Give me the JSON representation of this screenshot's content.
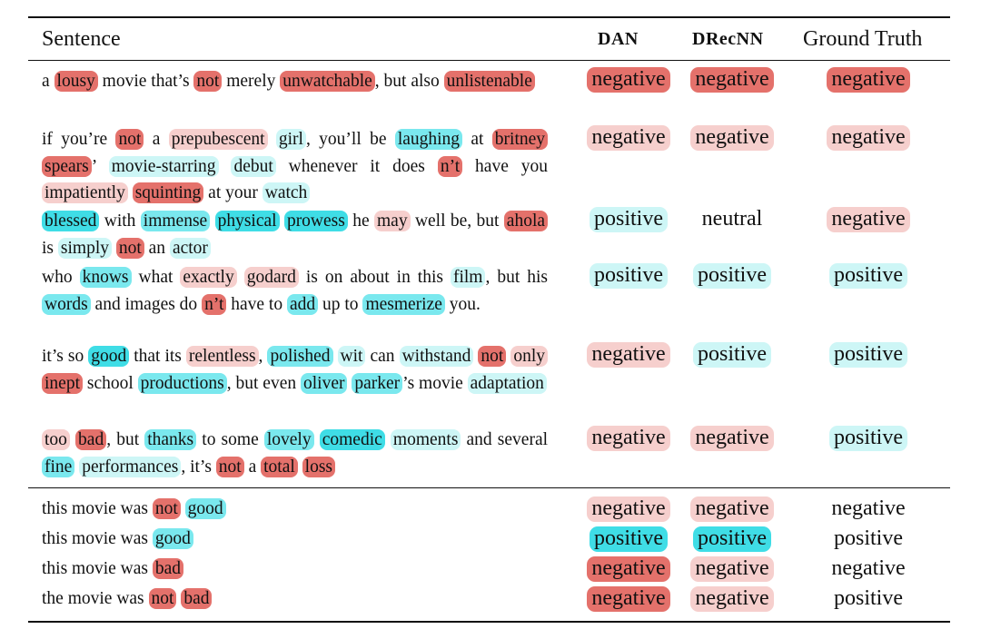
{
  "headers": {
    "sentence": "Sentence",
    "dan": "DAN",
    "drecnn": "DRecNN",
    "truth": "Ground Truth"
  },
  "rows": [
    {
      "tokens": [
        {
          "t": "a ",
          "c": "0"
        },
        {
          "t": "lousy",
          "c": "n3"
        },
        {
          "t": " movie that’s ",
          "c": "0"
        },
        {
          "t": "not",
          "c": "n3"
        },
        {
          "t": " merely ",
          "c": "0"
        },
        {
          "t": "unwatchable",
          "c": "n3"
        },
        {
          "t": ", but also ",
          "c": "0"
        },
        {
          "t": "unlistenable",
          "c": "n3"
        }
      ],
      "dan": {
        "text": "negative",
        "c": "n3"
      },
      "drecnn": {
        "text": "negative",
        "c": "n3"
      },
      "truth": {
        "text": "negative",
        "c": "n3"
      }
    },
    {
      "tokens": [
        {
          "t": "if you’re ",
          "c": "0"
        },
        {
          "t": "not",
          "c": "n3"
        },
        {
          "t": " a ",
          "c": "0"
        },
        {
          "t": "prepubescent",
          "c": "n1"
        },
        {
          "t": " ",
          "c": "0"
        },
        {
          "t": "girl",
          "c": "p1"
        },
        {
          "t": ", you’ll be ",
          "c": "0"
        },
        {
          "t": "laughing",
          "c": "p2"
        },
        {
          "t": " at ",
          "c": "0"
        },
        {
          "t": "britney",
          "c": "n3"
        },
        {
          "t": " ",
          "c": "0"
        },
        {
          "t": "spears",
          "c": "n3"
        },
        {
          "t": "’ ",
          "c": "0"
        },
        {
          "t": "movie-starring",
          "c": "p1"
        },
        {
          "t": " ",
          "c": "0"
        },
        {
          "t": "debut",
          "c": "p1"
        },
        {
          "t": " whenever it does ",
          "c": "0"
        },
        {
          "t": "n’t",
          "c": "n3"
        },
        {
          "t": " have you ",
          "c": "0"
        },
        {
          "t": "impatiently",
          "c": "n1"
        },
        {
          "t": " ",
          "c": "0"
        },
        {
          "t": "squinting",
          "c": "n3"
        },
        {
          "t": " at your ",
          "c": "0"
        },
        {
          "t": "watch",
          "c": "p1"
        }
      ],
      "dan": {
        "text": "negative",
        "c": "n1"
      },
      "drecnn": {
        "text": "negative",
        "c": "n1"
      },
      "truth": {
        "text": "negative",
        "c": "n1"
      }
    },
    {
      "tokens": [
        {
          "t": "blessed",
          "c": "p3"
        },
        {
          "t": " with ",
          "c": "0"
        },
        {
          "t": "immense",
          "c": "p2"
        },
        {
          "t": " ",
          "c": "0"
        },
        {
          "t": "physical",
          "c": "p3"
        },
        {
          "t": " ",
          "c": "0"
        },
        {
          "t": "prowess",
          "c": "p3"
        },
        {
          "t": " he ",
          "c": "0"
        },
        {
          "t": "may",
          "c": "n1"
        },
        {
          "t": " well be, but ",
          "c": "0"
        },
        {
          "t": "ahola",
          "c": "n3"
        },
        {
          "t": " is ",
          "c": "0"
        },
        {
          "t": "simply",
          "c": "p1"
        },
        {
          "t": " ",
          "c": "0"
        },
        {
          "t": "not",
          "c": "n3"
        },
        {
          "t": " an ",
          "c": "0"
        },
        {
          "t": "actor",
          "c": "p1"
        }
      ],
      "dan": {
        "text": "positive",
        "c": "p1"
      },
      "drecnn": {
        "text": "neutral",
        "c": "0"
      },
      "truth": {
        "text": "negative",
        "c": "n1"
      }
    },
    {
      "tokens": [
        {
          "t": "who ",
          "c": "0"
        },
        {
          "t": "knows",
          "c": "p2"
        },
        {
          "t": " what ",
          "c": "0"
        },
        {
          "t": "exactly",
          "c": "n1"
        },
        {
          "t": " ",
          "c": "0"
        },
        {
          "t": "godard",
          "c": "n1"
        },
        {
          "t": " is on about in this ",
          "c": "0"
        },
        {
          "t": "film",
          "c": "p1"
        },
        {
          "t": ", but his ",
          "c": "0"
        },
        {
          "t": "words",
          "c": "p2"
        },
        {
          "t": " and images do ",
          "c": "0"
        },
        {
          "t": "n’t",
          "c": "n3"
        },
        {
          "t": " have to ",
          "c": "0"
        },
        {
          "t": "add",
          "c": "p2"
        },
        {
          "t": " up to ",
          "c": "0"
        },
        {
          "t": "mesmerize",
          "c": "p2"
        },
        {
          "t": " you.",
          "c": "0"
        }
      ],
      "dan": {
        "text": "positive",
        "c": "p1"
      },
      "drecnn": {
        "text": "positive",
        "c": "p1"
      },
      "truth": {
        "text": "positive",
        "c": "p1"
      }
    },
    {
      "tokens": [
        {
          "t": "it’s so ",
          "c": "0"
        },
        {
          "t": "good",
          "c": "p3"
        },
        {
          "t": " that its ",
          "c": "0"
        },
        {
          "t": "relentless",
          "c": "n1"
        },
        {
          "t": ", ",
          "c": "0"
        },
        {
          "t": "polished",
          "c": "p2"
        },
        {
          "t": " ",
          "c": "0"
        },
        {
          "t": "wit",
          "c": "p1"
        },
        {
          "t": " can ",
          "c": "0"
        },
        {
          "t": "withstand",
          "c": "p1"
        },
        {
          "t": " ",
          "c": "0"
        },
        {
          "t": "not",
          "c": "n3"
        },
        {
          "t": " ",
          "c": "0"
        },
        {
          "t": "only",
          "c": "n1"
        },
        {
          "t": " ",
          "c": "0"
        },
        {
          "t": "inept",
          "c": "n3"
        },
        {
          "t": " school ",
          "c": "0"
        },
        {
          "t": "productions",
          "c": "p2"
        },
        {
          "t": ", but even ",
          "c": "0"
        },
        {
          "t": "oliver",
          "c": "p2"
        },
        {
          "t": " ",
          "c": "0"
        },
        {
          "t": "parker",
          "c": "p2"
        },
        {
          "t": "’s movie ",
          "c": "0"
        },
        {
          "t": "adaptation",
          "c": "p1"
        }
      ],
      "dan": {
        "text": "negative",
        "c": "n1"
      },
      "drecnn": {
        "text": "positive",
        "c": "p1"
      },
      "truth": {
        "text": "positive",
        "c": "p1"
      }
    },
    {
      "tokens": [
        {
          "t": "too",
          "c": "n1"
        },
        {
          "t": " ",
          "c": "0"
        },
        {
          "t": "bad",
          "c": "n3"
        },
        {
          "t": ", but ",
          "c": "0"
        },
        {
          "t": "thanks",
          "c": "p2"
        },
        {
          "t": " to some ",
          "c": "0"
        },
        {
          "t": "lovely",
          "c": "p2"
        },
        {
          "t": " ",
          "c": "0"
        },
        {
          "t": "comedic",
          "c": "p3"
        },
        {
          "t": " ",
          "c": "0"
        },
        {
          "t": "moments",
          "c": "p1"
        },
        {
          "t": " and several ",
          "c": "0"
        },
        {
          "t": "fine",
          "c": "p2"
        },
        {
          "t": " ",
          "c": "0"
        },
        {
          "t": "performances",
          "c": "p1"
        },
        {
          "t": ", it’s ",
          "c": "0"
        },
        {
          "t": "not",
          "c": "n3"
        },
        {
          "t": " a ",
          "c": "0"
        },
        {
          "t": "total",
          "c": "n3"
        },
        {
          "t": " ",
          "c": "0"
        },
        {
          "t": "loss",
          "c": "n3"
        }
      ],
      "dan": {
        "text": "negative",
        "c": "n1"
      },
      "drecnn": {
        "text": "negative",
        "c": "n1"
      },
      "truth": {
        "text": "positive",
        "c": "p1"
      }
    }
  ],
  "short_rows": [
    {
      "tokens": [
        {
          "t": "this movie was ",
          "c": "0"
        },
        {
          "t": "not",
          "c": "n3"
        },
        {
          "t": " ",
          "c": "0"
        },
        {
          "t": "good",
          "c": "p2"
        }
      ],
      "dan": {
        "text": "negative",
        "c": "n1"
      },
      "drecnn": {
        "text": "negative",
        "c": "n1"
      },
      "truth": {
        "text": "negative",
        "c": "0"
      }
    },
    {
      "tokens": [
        {
          "t": "this movie was ",
          "c": "0"
        },
        {
          "t": "good",
          "c": "p2"
        }
      ],
      "dan": {
        "text": "positive",
        "c": "p3"
      },
      "drecnn": {
        "text": "positive",
        "c": "p3"
      },
      "truth": {
        "text": "positive",
        "c": "0"
      }
    },
    {
      "tokens": [
        {
          "t": "this movie was ",
          "c": "0"
        },
        {
          "t": "bad",
          "c": "n3"
        }
      ],
      "dan": {
        "text": "negative",
        "c": "n3"
      },
      "drecnn": {
        "text": "negative",
        "c": "n1"
      },
      "truth": {
        "text": "negative",
        "c": "0"
      }
    },
    {
      "tokens": [
        {
          "t": "the movie was ",
          "c": "0"
        },
        {
          "t": "not",
          "c": "n3"
        },
        {
          "t": " ",
          "c": "0"
        },
        {
          "t": "bad",
          "c": "n3"
        }
      ],
      "dan": {
        "text": "negative",
        "c": "n3"
      },
      "drecnn": {
        "text": "negative",
        "c": "n1"
      },
      "truth": {
        "text": "positive",
        "c": "0"
      }
    }
  ],
  "colors": {
    "n3": "#e4716b",
    "n2": "#ec9c98",
    "n1": "#f6cfcd",
    "p1": "#cdf6f6",
    "p2": "#7ae8ee",
    "p3": "#3fdde6"
  }
}
